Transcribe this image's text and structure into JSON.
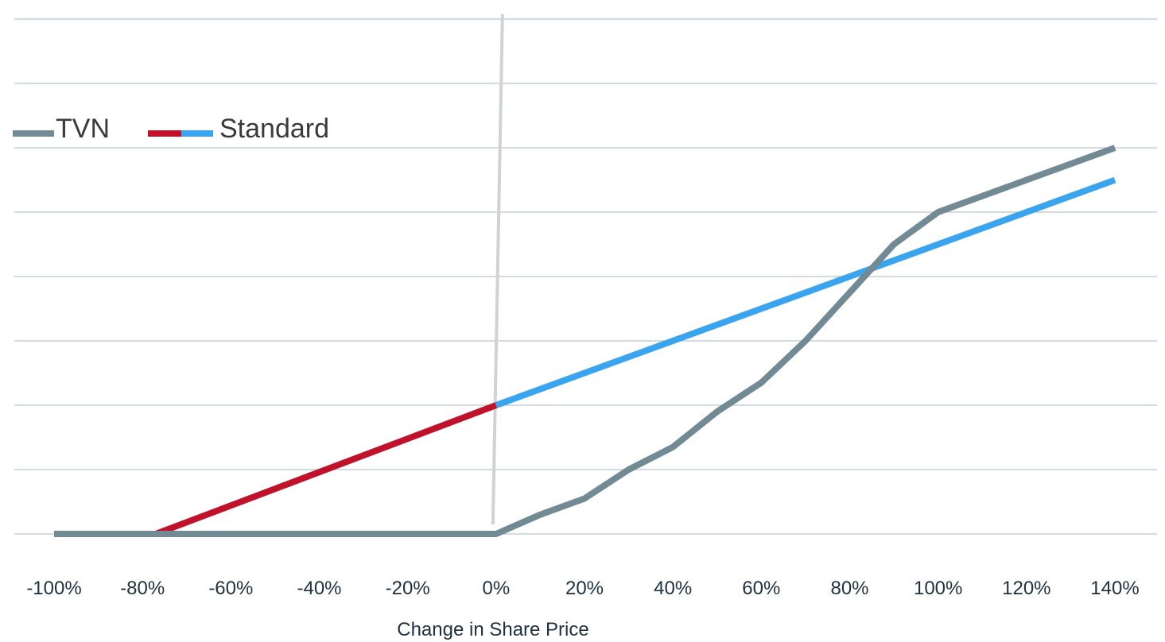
{
  "chart_data": {
    "type": "line",
    "xlabel": "Change in Share Price",
    "ylabel": "",
    "x_tick_labels": [
      "-100%",
      "-80%",
      "-60%",
      "-40%",
      "-20%",
      "0%",
      "20%",
      "40%",
      "60%",
      "80%",
      "100%",
      "120%",
      "140%"
    ],
    "xlim": [
      -100,
      140
    ],
    "ylim": [
      0,
      140
    ],
    "grid": true,
    "legend_position": "top-left",
    "series": [
      {
        "name": "TVN",
        "color": "#718a93",
        "points": [
          [
            -100,
            0
          ],
          [
            -80,
            0
          ],
          [
            -60,
            0
          ],
          [
            -40,
            0
          ],
          [
            -20,
            0
          ],
          [
            0,
            0
          ],
          [
            10,
            6
          ],
          [
            20,
            11
          ],
          [
            30,
            20
          ],
          [
            40,
            27
          ],
          [
            50,
            38
          ],
          [
            60,
            47
          ],
          [
            70,
            60
          ],
          [
            80,
            75
          ],
          [
            90,
            90
          ],
          [
            100,
            100
          ],
          [
            120,
            110
          ],
          [
            140,
            120
          ]
        ]
      },
      {
        "name": "Standard",
        "color_downside": "#c0122b",
        "color_upside": "#3aa4ee",
        "split_at": 0,
        "points": [
          [
            -100,
            0
          ],
          [
            -77,
            0
          ],
          [
            0,
            40
          ],
          [
            140,
            110
          ]
        ]
      }
    ],
    "reference_line": {
      "x": 0,
      "color": "#cfd3d6"
    }
  }
}
